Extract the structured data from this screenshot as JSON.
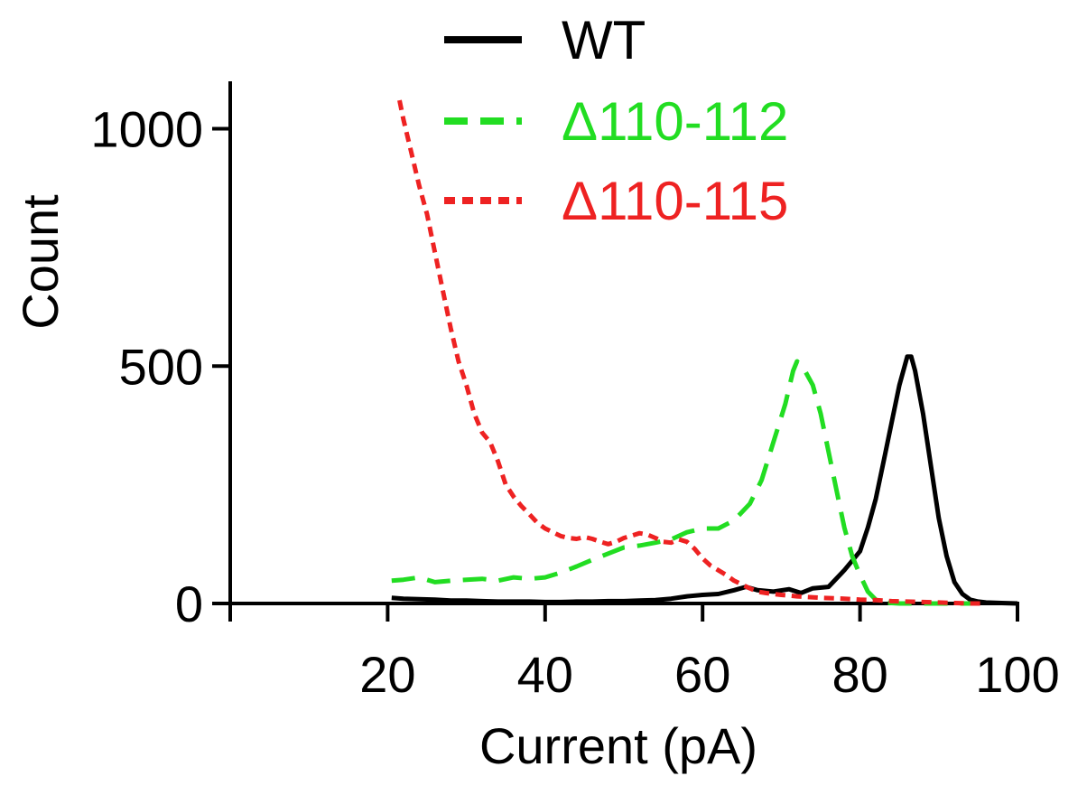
{
  "chart_data": {
    "type": "line",
    "title": "",
    "xlabel": "Current (pA)",
    "ylabel": "Count",
    "xlim": [
      0,
      100
    ],
    "ylim": [
      0,
      1100
    ],
    "x_ticks": [
      20,
      40,
      60,
      80,
      100
    ],
    "y_ticks": [
      0,
      500,
      1000
    ],
    "x_tick_labels": [
      "20",
      "40",
      "60",
      "80",
      "100"
    ],
    "y_tick_labels": [
      "0",
      "500",
      "1000"
    ],
    "grid": false,
    "legend_position": "top-center",
    "series": [
      {
        "name": "WT",
        "color": "#000000",
        "style": "solid",
        "points": [
          [
            20.5,
            12
          ],
          [
            22,
            10
          ],
          [
            24,
            9
          ],
          [
            26,
            8
          ],
          [
            28,
            6
          ],
          [
            30,
            6
          ],
          [
            32,
            5
          ],
          [
            34,
            4
          ],
          [
            36,
            4
          ],
          [
            38,
            4
          ],
          [
            40,
            3
          ],
          [
            42,
            3
          ],
          [
            44,
            4
          ],
          [
            46,
            4
          ],
          [
            48,
            5
          ],
          [
            50,
            5
          ],
          [
            52,
            6
          ],
          [
            54,
            7
          ],
          [
            56,
            10
          ],
          [
            58,
            15
          ],
          [
            60,
            18
          ],
          [
            62,
            20
          ],
          [
            64,
            28
          ],
          [
            65.5,
            35
          ],
          [
            67,
            28
          ],
          [
            69,
            25
          ],
          [
            71,
            30
          ],
          [
            72.5,
            22
          ],
          [
            74,
            32
          ],
          [
            76,
            35
          ],
          [
            78,
            70
          ],
          [
            80,
            110
          ],
          [
            81,
            160
          ],
          [
            82,
            220
          ],
          [
            83,
            300
          ],
          [
            84,
            380
          ],
          [
            85,
            460
          ],
          [
            86,
            520
          ],
          [
            86.5,
            520
          ],
          [
            87,
            490
          ],
          [
            88,
            400
          ],
          [
            89,
            290
          ],
          [
            90,
            180
          ],
          [
            91,
            100
          ],
          [
            92,
            45
          ],
          [
            93,
            20
          ],
          [
            94,
            8
          ],
          [
            95,
            4
          ],
          [
            96,
            2
          ],
          [
            98,
            1
          ],
          [
            100,
            0
          ]
        ]
      },
      {
        "name": "Δ110-112",
        "color": "#22dd22",
        "style": "dashed",
        "points": [
          [
            20.5,
            48
          ],
          [
            22,
            50
          ],
          [
            24,
            55
          ],
          [
            26,
            45
          ],
          [
            28,
            48
          ],
          [
            30,
            50
          ],
          [
            32,
            52
          ],
          [
            34,
            48
          ],
          [
            36,
            55
          ],
          [
            38,
            52
          ],
          [
            40,
            55
          ],
          [
            42,
            65
          ],
          [
            44,
            78
          ],
          [
            46,
            92
          ],
          [
            48,
            105
          ],
          [
            50,
            118
          ],
          [
            52,
            122
          ],
          [
            54,
            128
          ],
          [
            56,
            135
          ],
          [
            58,
            150
          ],
          [
            60,
            158
          ],
          [
            62,
            158
          ],
          [
            64,
            175
          ],
          [
            66,
            210
          ],
          [
            67.5,
            260
          ],
          [
            69,
            340
          ],
          [
            70.5,
            420
          ],
          [
            71.5,
            490
          ],
          [
            72,
            510
          ],
          [
            73,
            490
          ],
          [
            74,
            460
          ],
          [
            75,
            400
          ],
          [
            76,
            320
          ],
          [
            77,
            240
          ],
          [
            78,
            160
          ],
          [
            79,
            100
          ],
          [
            80,
            60
          ],
          [
            81,
            25
          ],
          [
            82,
            8
          ],
          [
            83,
            2
          ],
          [
            85,
            0
          ],
          [
            90,
            0
          ],
          [
            95,
            0
          ]
        ]
      },
      {
        "name": "Δ110-115",
        "color": "#ee2222",
        "style": "dotted",
        "points": [
          [
            21.5,
            1060
          ],
          [
            22,
            1020
          ],
          [
            23,
            950
          ],
          [
            24,
            880
          ],
          [
            25,
            820
          ],
          [
            26,
            740
          ],
          [
            27,
            660
          ],
          [
            28,
            580
          ],
          [
            29,
            510
          ],
          [
            30,
            460
          ],
          [
            31,
            400
          ],
          [
            32,
            360
          ],
          [
            33,
            340
          ],
          [
            34,
            300
          ],
          [
            35,
            250
          ],
          [
            36,
            225
          ],
          [
            37,
            205
          ],
          [
            38,
            188
          ],
          [
            39,
            170
          ],
          [
            40,
            158
          ],
          [
            41,
            150
          ],
          [
            42,
            142
          ],
          [
            43,
            138
          ],
          [
            44,
            136
          ],
          [
            45,
            140
          ],
          [
            46,
            136
          ],
          [
            47,
            130
          ],
          [
            48,
            125
          ],
          [
            49,
            130
          ],
          [
            50,
            138
          ],
          [
            51,
            143
          ],
          [
            52,
            148
          ],
          [
            53,
            145
          ],
          [
            54,
            138
          ],
          [
            55,
            130
          ],
          [
            56,
            128
          ],
          [
            57,
            135
          ],
          [
            58,
            130
          ],
          [
            59,
            115
          ],
          [
            60,
            95
          ],
          [
            61,
            80
          ],
          [
            62,
            70
          ],
          [
            63,
            60
          ],
          [
            64,
            48
          ],
          [
            65,
            40
          ],
          [
            66,
            32
          ],
          [
            67,
            25
          ],
          [
            68,
            22
          ],
          [
            70,
            18
          ],
          [
            72,
            15
          ],
          [
            75,
            12
          ],
          [
            78,
            10
          ],
          [
            80,
            8
          ],
          [
            82,
            7
          ],
          [
            84,
            5
          ],
          [
            86,
            4
          ],
          [
            88,
            3
          ],
          [
            90,
            2
          ],
          [
            92,
            1
          ],
          [
            94,
            0
          ],
          [
            96,
            0
          ]
        ]
      }
    ]
  }
}
